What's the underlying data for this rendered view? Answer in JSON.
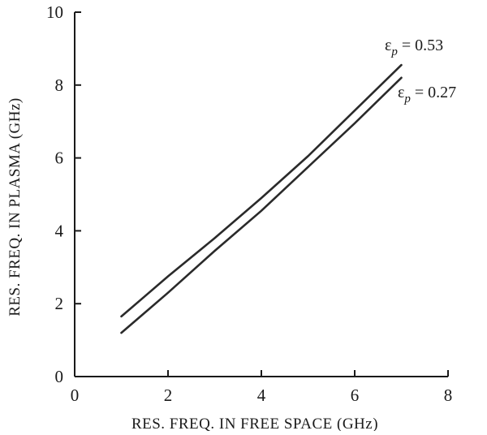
{
  "chart_data": {
    "type": "line",
    "title": "",
    "xlabel": "RES. FREQ. IN FREE SPACE (GHz)",
    "ylabel": "RES. FREQ. IN PLASMA (GHz)",
    "xlim": [
      0,
      8
    ],
    "ylim": [
      0,
      10
    ],
    "xticks": [
      0,
      2,
      4,
      6,
      8
    ],
    "yticks": [
      0,
      2,
      4,
      6,
      8,
      10
    ],
    "grid": false,
    "series": [
      {
        "name": "εp = 0.53",
        "x": [
          1.0,
          1.5,
          2.0,
          3.0,
          4.0,
          5.0,
          6.0,
          7.0
        ],
        "y": [
          1.65,
          2.2,
          2.75,
          3.8,
          4.9,
          6.05,
          7.3,
          8.55
        ]
      },
      {
        "name": "εp = 0.27",
        "x": [
          1.0,
          1.5,
          2.0,
          3.0,
          4.0,
          5.0,
          6.0,
          7.0
        ],
        "y": [
          1.2,
          1.75,
          2.3,
          3.45,
          4.55,
          5.75,
          6.95,
          8.2
        ]
      }
    ],
    "legend": [
      {
        "symbol": "ε",
        "subscript": "p",
        "text": " = 0.53"
      },
      {
        "symbol": "ε",
        "subscript": "p",
        "text": " = 0.27"
      }
    ],
    "legend_placement": "right"
  }
}
